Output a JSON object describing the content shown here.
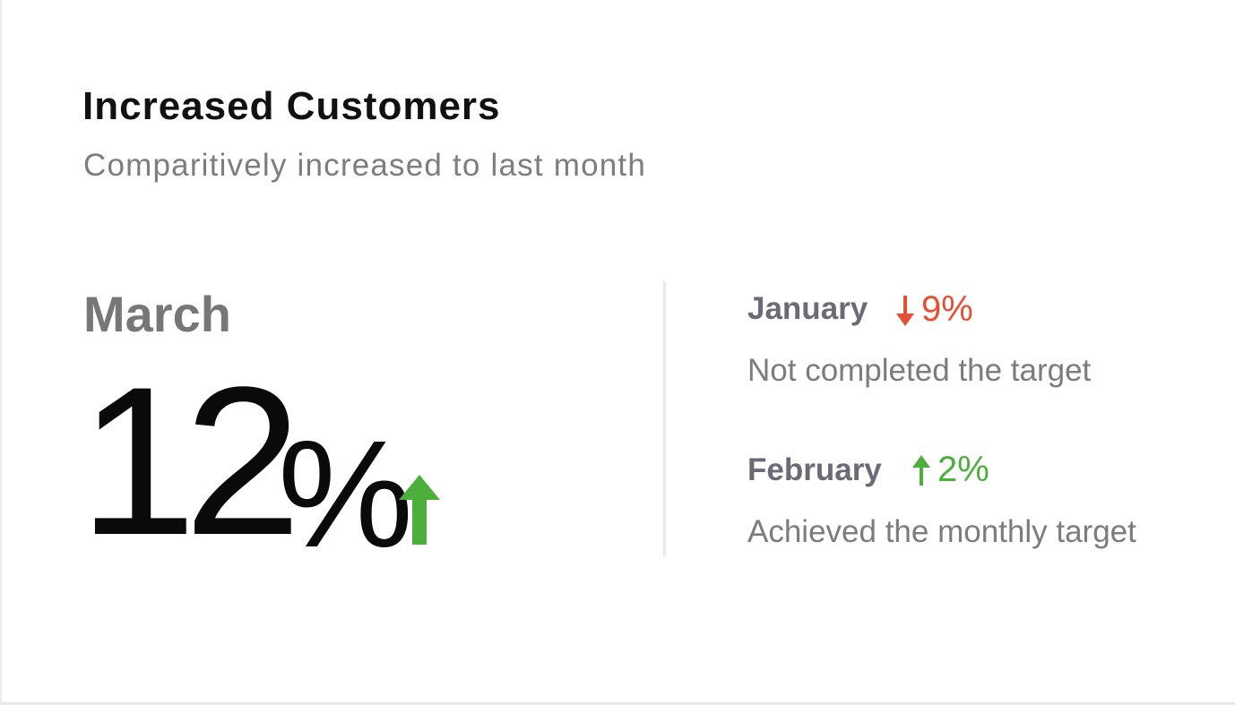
{
  "card": {
    "title": "Increased Customers",
    "subtitle": "Comparitively increased to last month"
  },
  "current": {
    "month": "March",
    "value": "12",
    "unit": "%",
    "trend": "up",
    "trend_icon": "arrow-up-icon",
    "trend_color": "#4caf3c"
  },
  "comparisons": [
    {
      "month": "January",
      "change": "9%",
      "trend": "down",
      "trend_icon": "arrow-down-icon",
      "trend_color": "#e45034",
      "note": "Not completed the target"
    },
    {
      "month": "February",
      "change": "2%",
      "trend": "up",
      "trend_icon": "arrow-up-icon",
      "trend_color": "#4caf3c",
      "note": "Achieved the monthly target"
    }
  ]
}
